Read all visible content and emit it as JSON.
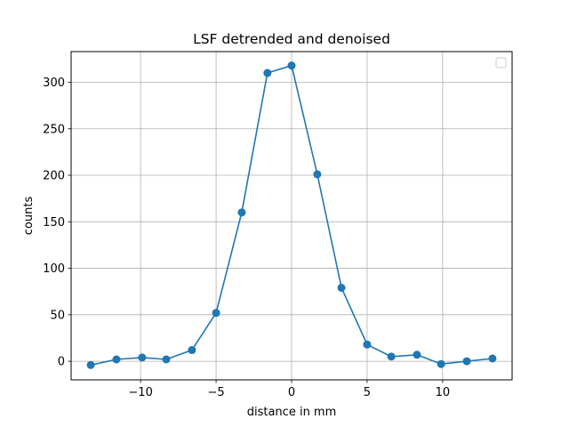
{
  "chart_data": {
    "type": "line",
    "title": "LSF detrended and denoised",
    "xlabel": "distance in mm",
    "ylabel": "counts",
    "xlim": [
      -14.6,
      14.6
    ],
    "ylim": [
      -20,
      333
    ],
    "xticks": [
      -10,
      -5,
      0,
      5,
      10
    ],
    "xtick_labels": [
      "−10",
      "−5",
      "0",
      "5",
      "10"
    ],
    "yticks": [
      0,
      50,
      100,
      150,
      200,
      250,
      300
    ],
    "ytick_labels": [
      "0",
      "50",
      "100",
      "150",
      "200",
      "250",
      "300"
    ],
    "grid": true,
    "legend": {
      "placement": "top-right",
      "entries": []
    },
    "series": [
      {
        "color": "#1f77b4",
        "marker": "circle",
        "x": [
          -13.3,
          -11.6,
          -9.9,
          -8.3,
          -6.6,
          -5.0,
          -3.3,
          -1.6,
          0.0,
          1.7,
          3.3,
          5.0,
          6.6,
          8.3,
          9.9,
          11.6,
          13.3
        ],
        "y": [
          -4,
          2,
          4,
          2,
          12,
          52,
          160,
          310,
          318,
          201,
          79,
          18,
          5,
          7,
          -3,
          0,
          3
        ]
      }
    ]
  }
}
